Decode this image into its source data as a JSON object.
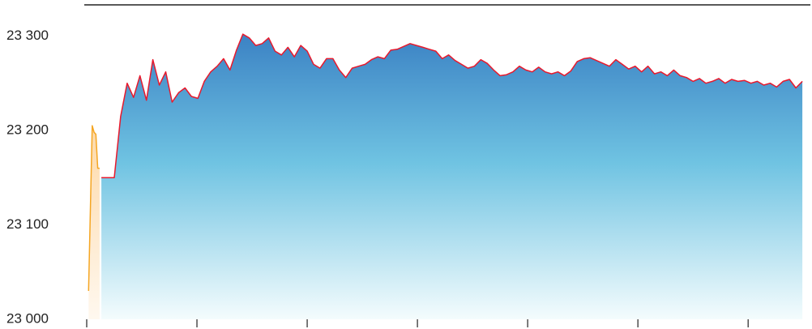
{
  "chart_data": {
    "type": "area",
    "xlim": [
      0,
      393
    ],
    "xticks": [
      0,
      60,
      120,
      180,
      240,
      300,
      360
    ],
    "ylim": [
      23000,
      23333
    ],
    "yticks": [
      {
        "value": 23000,
        "label": "23 000"
      },
      {
        "value": 23100,
        "label": "23 100"
      },
      {
        "value": 23200,
        "label": "23 200"
      },
      {
        "value": 23300,
        "label": "23 300"
      }
    ],
    "series": [
      {
        "color": "#f5a623",
        "x": [
          1,
          3,
          4,
          5,
          6,
          7
        ],
        "values": [
          23030,
          23205,
          23198,
          23196,
          23160,
          23160
        ]
      },
      {
        "color": "#e8192c",
        "x": [
          8,
          11.5,
          15,
          18.5,
          22,
          25.5,
          29,
          32.5,
          36,
          39.5,
          43,
          46.5,
          50,
          53.5,
          57,
          60.5,
          64,
          67.5,
          71,
          74.5,
          78,
          81.5,
          85,
          88.5,
          92,
          95.5,
          99,
          102.5,
          106,
          109.5,
          113,
          116.5,
          120,
          123.5,
          127,
          130.5,
          134,
          137.5,
          141,
          144.5,
          148,
          151.5,
          155,
          158.5,
          162,
          165.5,
          169,
          172.5,
          176,
          179.5,
          183,
          186.5,
          190,
          193.5,
          197,
          200.5,
          204,
          207.5,
          211,
          214.5,
          218,
          221.5,
          225,
          228.5,
          232,
          235.5,
          239,
          242.5,
          246,
          249.5,
          253,
          256.5,
          260,
          263.5,
          267,
          270.5,
          274,
          277.5,
          281,
          284.5,
          288,
          291.5,
          295,
          298.5,
          302,
          305.5,
          309,
          312.5,
          316,
          319.5,
          323,
          326.5,
          330,
          333.5,
          337,
          340.5,
          344,
          347.5,
          351,
          354.5,
          358,
          361.5,
          365,
          368.5,
          372,
          375.5,
          379,
          382.5,
          386,
          389.5
        ],
        "values": [
          23150,
          23150,
          23150,
          23215,
          23250,
          23235,
          23258,
          23232,
          23275,
          23248,
          23262,
          23230,
          23240,
          23245,
          23236,
          23234,
          23252,
          23262,
          23268,
          23276,
          23264,
          23285,
          23302,
          23298,
          23290,
          23292,
          23298,
          23284,
          23280,
          23288,
          23278,
          23290,
          23284,
          23270,
          23266,
          23276,
          23276,
          23264,
          23256,
          23266,
          23268,
          23270,
          23275,
          23278,
          23276,
          23285,
          23286,
          23289,
          23292,
          23290,
          23288,
          23286,
          23284,
          23276,
          23280,
          23274,
          23270,
          23266,
          23268,
          23275,
          23271,
          23264,
          23258,
          23259,
          23262,
          23268,
          23264,
          23262,
          23267,
          23262,
          23260,
          23262,
          23258,
          23263,
          23273,
          23276,
          23277,
          23274,
          23271,
          23268,
          23275,
          23270,
          23265,
          23268,
          23262,
          23268,
          23260,
          23262,
          23258,
          23264,
          23258,
          23256,
          23252,
          23255,
          23250,
          23252,
          23255,
          23250,
          23254,
          23252,
          23253,
          23250,
          23252,
          23248,
          23250,
          23246,
          23252,
          23254,
          23245,
          23252
        ]
      }
    ]
  }
}
